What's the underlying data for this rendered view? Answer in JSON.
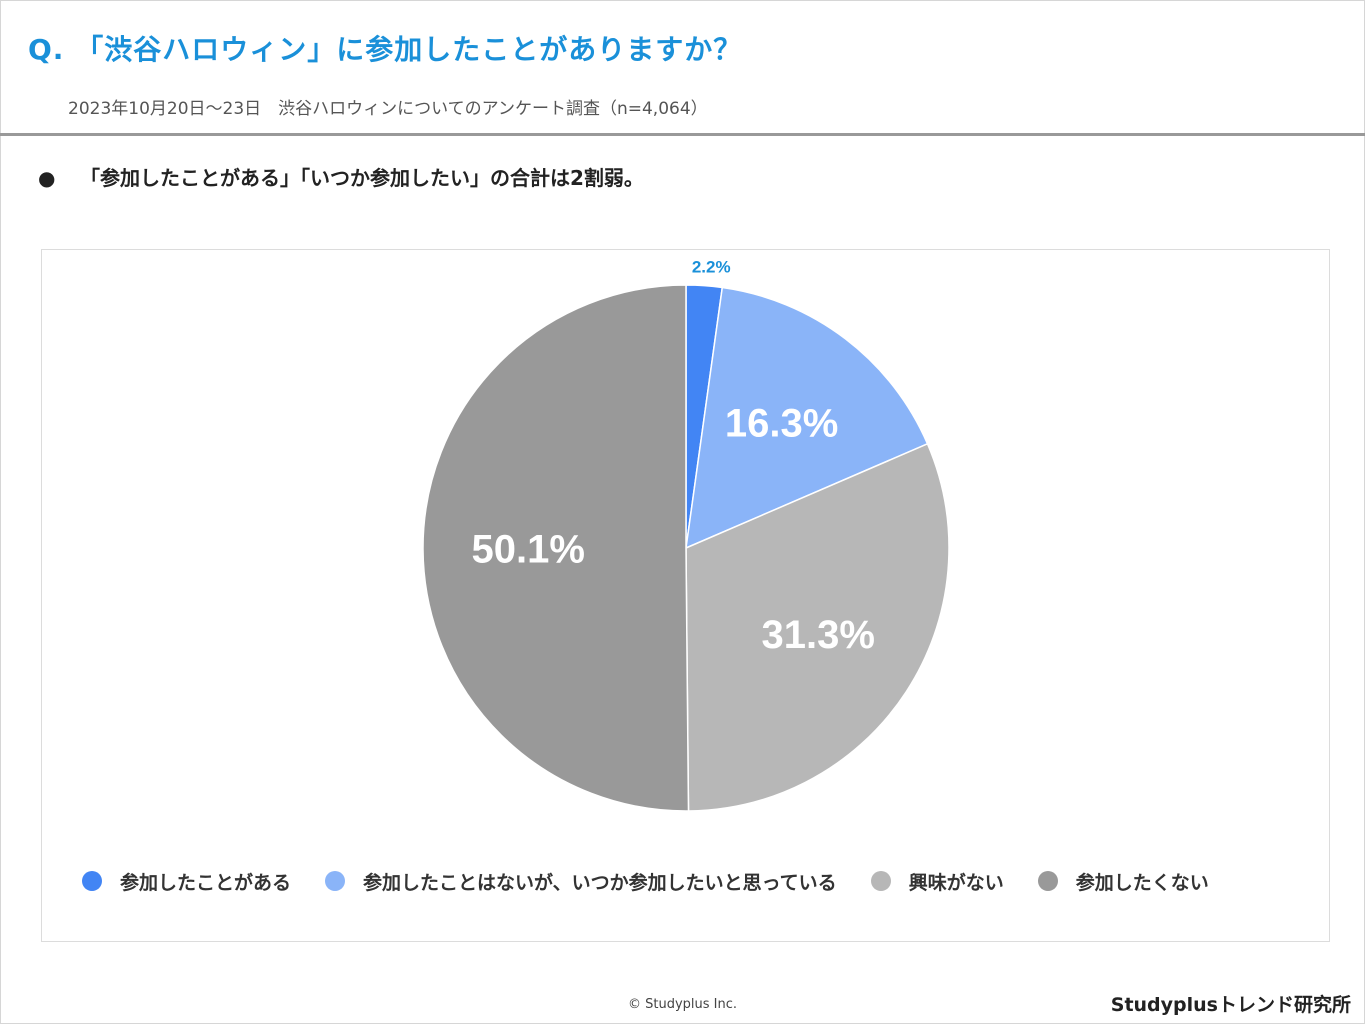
{
  "header": {
    "title": "Q. 「渋谷ハロウィン」に参加したことがありますか？",
    "subtitle": "2023年10月20日〜23日　渋谷ハロウィンについてのアンケート調査（n=4,064）"
  },
  "summary": {
    "bullet": "●",
    "text": "「参加したことがある」「いつか参加したい」の合計は2割弱。"
  },
  "chart_data": {
    "type": "pie",
    "title": "Q. 「渋谷ハロウィン」に参加したことがありますか？",
    "categories": [
      "参加したことがある",
      "参加したことはないが、いつか参加したいと思っている",
      "興味がない",
      "参加したくない"
    ],
    "values": [
      2.2,
      16.3,
      31.3,
      50.1
    ],
    "labels": [
      "2.2%",
      "16.3%",
      "31.3%",
      "50.1%"
    ],
    "colors": [
      "#4285f4",
      "#8ab4f8",
      "#b7b7b7",
      "#999999"
    ],
    "legend_position": "bottom"
  },
  "footer": {
    "copyright": "© Studyplus Inc.",
    "brand": "Studyplusトレンド研究所"
  }
}
